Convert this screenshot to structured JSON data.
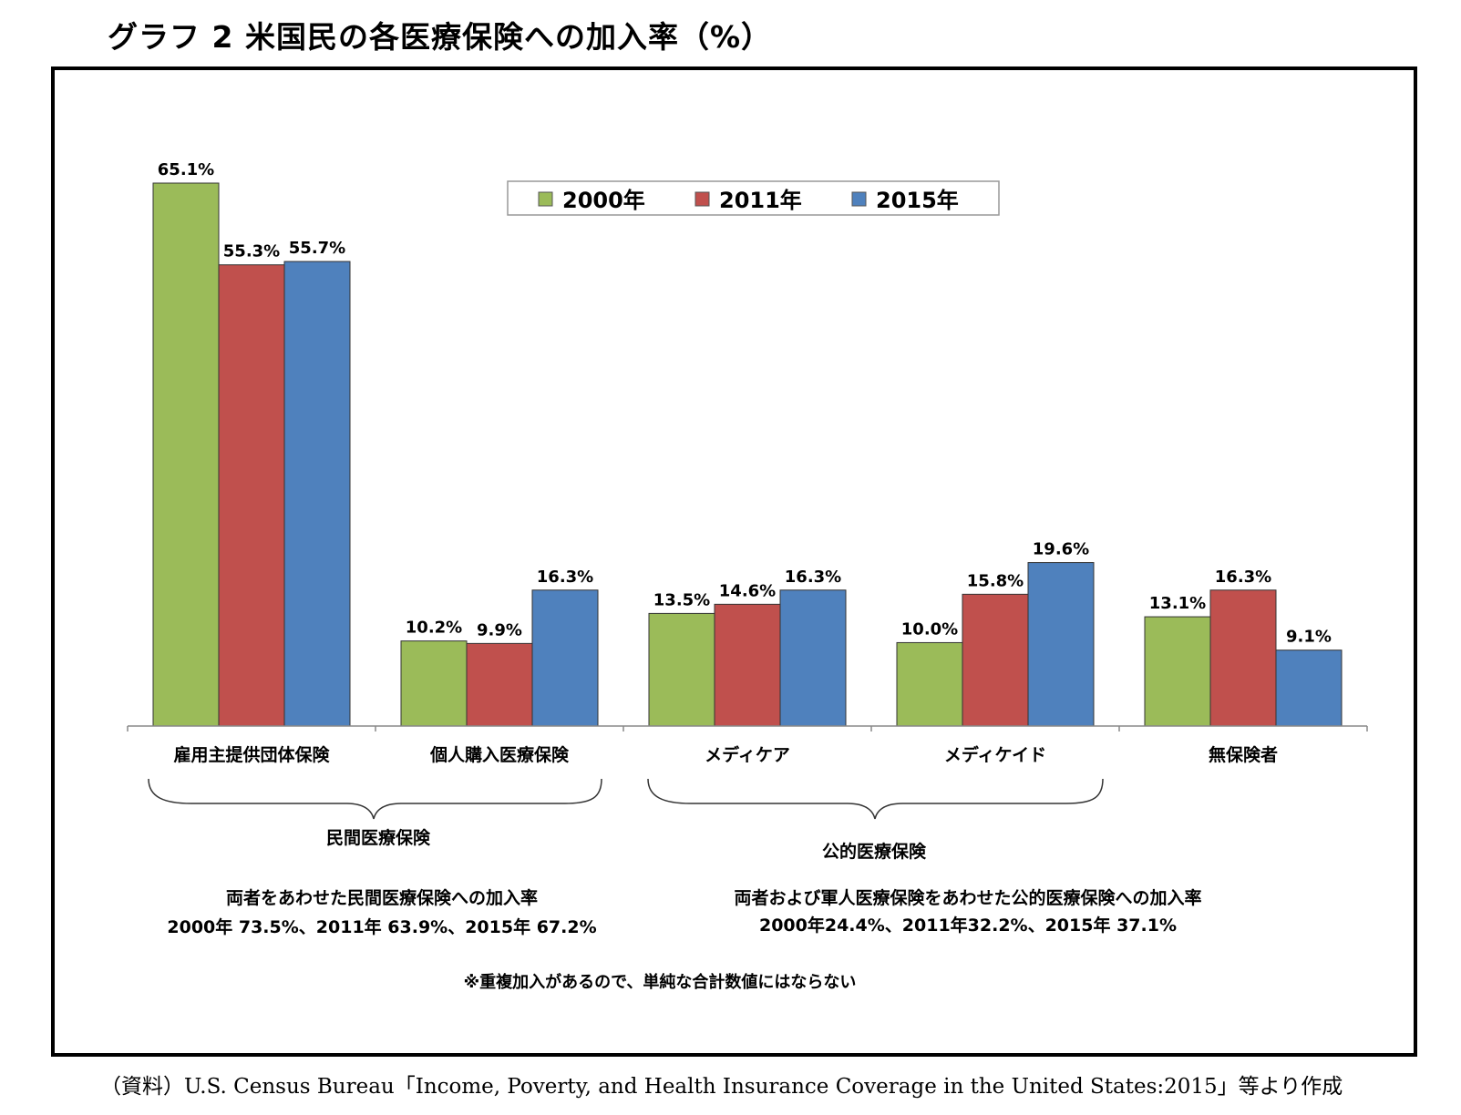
{
  "title": "グラフ 2 米国民の各医療保険への加入率（%）",
  "colors": {
    "2000": "#9bbb59",
    "2011": "#c0504d",
    "2015": "#4f81bd"
  },
  "chart_data": {
    "type": "bar",
    "categories": [
      "雇用主提供団体保険",
      "個人購入医療保険",
      "メディケア",
      "メディケイド",
      "無保険者"
    ],
    "series": [
      {
        "name": "2000年",
        "values": [
          65.1,
          10.2,
          13.5,
          10.0,
          13.1
        ],
        "labels": [
          "65.1%",
          "10.2%",
          "13.5%",
          "10.0%",
          "13.1%"
        ]
      },
      {
        "name": "2011年",
        "values": [
          55.3,
          9.9,
          14.6,
          15.8,
          16.3
        ],
        "labels": [
          "55.3%",
          "9.9%",
          "14.6%",
          "15.8%",
          "16.3%"
        ]
      },
      {
        "name": "2015年",
        "values": [
          55.7,
          16.3,
          16.3,
          19.6,
          9.1
        ],
        "labels": [
          "55.7%",
          "16.3%",
          "16.3%",
          "19.6%",
          "9.1%"
        ]
      }
    ],
    "legend": [
      "2000年",
      "2011年",
      "2015年"
    ],
    "legend_position": "top-center",
    "grid": false,
    "ylim": [
      0,
      65.1
    ]
  },
  "groups": {
    "private": "民間医療保険",
    "public": "公的医療保険"
  },
  "notes": {
    "private_line1": "両者をあわせた民間医療保険への加入率",
    "private_line2": "2000年 73.5%、2011年 63.9%、2015年 67.2%",
    "public_line1": "両者および軍人医療保険をあわせた公的医療保険への加入率",
    "public_line2": "2000年24.4%、2011年32.2%、2015年 37.1%",
    "footnote": "※重複加入があるので、単純な合計数値にはならない"
  },
  "source": "（資料）U.S. Census Bureau「Income, Poverty, and Health Insurance Coverage in the United States:2015」等より作成"
}
